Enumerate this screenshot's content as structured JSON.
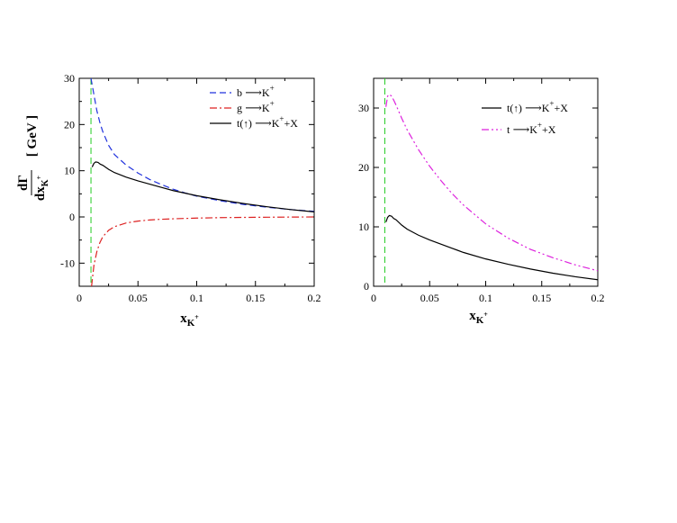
{
  "chart_data": [
    {
      "type": "line",
      "title": "",
      "xlabel": "x",
      "xlabel_sub": "K",
      "xlabel_sup": "+",
      "ylabel_num": "dΓ",
      "ylabel_den": "dx",
      "ylabel_den_sub": "K",
      "ylabel_den_sup": "+",
      "ylabel_unit": "[ GeV ]",
      "xlim": [
        0,
        0.2
      ],
      "ylim": [
        -15,
        30
      ],
      "xticks": [
        0,
        0.05,
        0.1,
        0.15,
        0.2
      ],
      "xtick_labels": [
        "0",
        "0.05",
        "0.1",
        "0.15",
        "0.2"
      ],
      "yticks": [
        -10,
        0,
        10,
        20,
        30
      ],
      "ytick_labels": [
        "-10",
        "0",
        "10",
        "20",
        "30"
      ],
      "grid": false,
      "legend_position": "top-right",
      "vline": {
        "x": 0.01,
        "color": "#22cc22",
        "dash": "dashed"
      },
      "series": [
        {
          "name": "b → K+",
          "legend": {
            "pre": "b",
            "to": "K",
            "sup": "+",
            "post": ""
          },
          "color": "#2233dd",
          "dash": "dashed",
          "x": [
            0.01,
            0.0125,
            0.015,
            0.0175,
            0.02,
            0.025,
            0.03,
            0.04,
            0.05,
            0.06,
            0.07,
            0.08,
            0.09,
            0.1,
            0.12,
            0.14,
            0.16,
            0.18,
            0.2
          ],
          "y": [
            30,
            26.5,
            23,
            20.5,
            18.5,
            15.5,
            13.5,
            11.2,
            9.5,
            8.1,
            7.0,
            6.0,
            5.2,
            4.5,
            3.5,
            2.7,
            2.1,
            1.6,
            1.2
          ]
        },
        {
          "name": "g → K+",
          "legend": {
            "pre": "g",
            "to": "K",
            "sup": "+",
            "post": ""
          },
          "color": "#dd2222",
          "dash": "dashdot",
          "x": [
            0.0105,
            0.0125,
            0.015,
            0.0175,
            0.02,
            0.025,
            0.03,
            0.04,
            0.05,
            0.06,
            0.07,
            0.08,
            0.1,
            0.12,
            0.14,
            0.16,
            0.18,
            0.2
          ],
          "y": [
            -15,
            -10.5,
            -7.5,
            -5.6,
            -4.3,
            -2.9,
            -2.1,
            -1.3,
            -0.9,
            -0.65,
            -0.5,
            -0.4,
            -0.25,
            -0.15,
            -0.1,
            -0.06,
            -0.03,
            0
          ]
        },
        {
          "name": "t(↑) → K+ + X",
          "legend": {
            "pre": "t(",
            "arrow": true,
            "post_pre": ")",
            "to": "K",
            "sup": "+",
            "post": "+X"
          },
          "color": "#000000",
          "dash": "solid",
          "x": [
            0.011,
            0.0125,
            0.014,
            0.016,
            0.018,
            0.02,
            0.025,
            0.03,
            0.04,
            0.05,
            0.06,
            0.07,
            0.08,
            0.1,
            0.12,
            0.14,
            0.16,
            0.18,
            0.2
          ],
          "y": [
            10.8,
            11.6,
            11.9,
            11.8,
            11.4,
            11.2,
            10.3,
            9.6,
            8.6,
            7.8,
            7.1,
            6.4,
            5.7,
            4.6,
            3.7,
            2.9,
            2.2,
            1.6,
            1.1
          ]
        }
      ]
    },
    {
      "type": "line",
      "title": "",
      "xlabel": "x",
      "xlabel_sub": "K",
      "xlabel_sup": "+",
      "xlim": [
        0,
        0.2
      ],
      "ylim": [
        0,
        35
      ],
      "xticks": [
        0,
        0.05,
        0.1,
        0.15,
        0.2
      ],
      "xtick_labels": [
        "0",
        "0.05",
        "0.1",
        "0.15",
        "0.2"
      ],
      "yticks": [
        0,
        10,
        20,
        30
      ],
      "ytick_labels": [
        "0",
        "10",
        "20",
        "30"
      ],
      "grid": false,
      "legend_position": "top-right",
      "vline": {
        "x": 0.01,
        "color": "#22cc22",
        "dash": "dashed"
      },
      "series": [
        {
          "name": "t(↑) → K+ + X",
          "legend": {
            "pre": "t(",
            "arrow": true,
            "post_pre": ")",
            "to": "K",
            "sup": "+",
            "post": "+X"
          },
          "color": "#000000",
          "dash": "solid",
          "x": [
            0.011,
            0.0125,
            0.014,
            0.016,
            0.018,
            0.02,
            0.025,
            0.03,
            0.04,
            0.05,
            0.06,
            0.07,
            0.08,
            0.1,
            0.12,
            0.14,
            0.16,
            0.18,
            0.2
          ],
          "y": [
            10.8,
            11.6,
            11.9,
            11.8,
            11.4,
            11.2,
            10.3,
            9.6,
            8.6,
            7.8,
            7.1,
            6.4,
            5.7,
            4.6,
            3.7,
            2.9,
            2.2,
            1.6,
            1.1
          ]
        },
        {
          "name": "t → K+ + X",
          "legend": {
            "pre": "t",
            "to": "K",
            "sup": "+",
            "post": "+X"
          },
          "color": "#dd22dd",
          "dash": "dashdotdot",
          "x": [
            0.011,
            0.0125,
            0.014,
            0.016,
            0.018,
            0.02,
            0.025,
            0.03,
            0.04,
            0.05,
            0.06,
            0.07,
            0.08,
            0.1,
            0.12,
            0.14,
            0.16,
            0.18,
            0.2
          ],
          "y": [
            30.2,
            32.0,
            32.3,
            32.0,
            31.3,
            30.5,
            28.3,
            26.3,
            23.0,
            20.2,
            17.8,
            15.6,
            13.7,
            10.5,
            8.1,
            6.2,
            4.8,
            3.6,
            2.6
          ]
        }
      ]
    }
  ]
}
